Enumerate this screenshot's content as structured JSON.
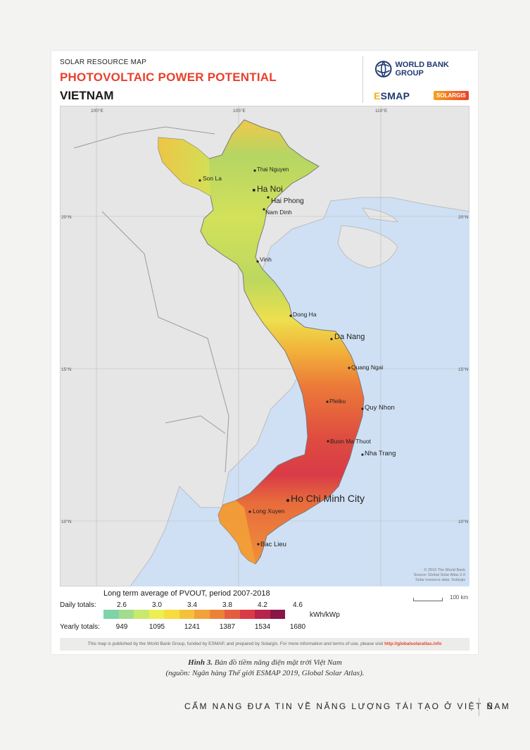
{
  "header": {
    "subtitle": "SOLAR RESOURCE MAP",
    "title": "PHOTOVOLTAIC POWER POTENTIAL",
    "country": "VIETNAM",
    "partners": {
      "world_bank": "WORLD BANK GROUP",
      "esmap_e": "E",
      "esmap_rest": "SMAP",
      "solargis": "SOLARGIS"
    }
  },
  "map": {
    "longitude_labels": [
      "100°E",
      "105°E",
      "110°E"
    ],
    "latitude_labels": [
      "20°N",
      "15°N",
      "10°N"
    ],
    "cities": [
      {
        "name": "Thai Nguyen",
        "size": "small"
      },
      {
        "name": "Son La",
        "size": "small"
      },
      {
        "name": "Ha Noi",
        "size": "large"
      },
      {
        "name": "Hai Phong",
        "size": "medium"
      },
      {
        "name": "Nam Dinh",
        "size": "small"
      },
      {
        "name": "Vinh",
        "size": "small"
      },
      {
        "name": "Dong Ha",
        "size": "small"
      },
      {
        "name": "Da Nang",
        "size": "medium"
      },
      {
        "name": "Quang Ngai",
        "size": "small"
      },
      {
        "name": "Pleiku",
        "size": "small"
      },
      {
        "name": "Quy Nhon",
        "size": "small"
      },
      {
        "name": "Buon Ma Thuot",
        "size": "small"
      },
      {
        "name": "Nha Trang",
        "size": "small"
      },
      {
        "name": "Ho Chi Minh City",
        "size": "large"
      },
      {
        "name": "Long Xuyen",
        "size": "small"
      },
      {
        "name": "Bac Lieu",
        "size": "small"
      }
    ],
    "copyright": [
      "© 2019 The World Bank",
      "Source: Global Solar Atlas 2.0",
      "Solar resource data: Solargis"
    ],
    "colors": {
      "sea": "#cfe0f4",
      "land": "#e6e6e6",
      "border": "#9a9a9a"
    }
  },
  "legend": {
    "title": "Long term average of PVOUT, period 2007-2018",
    "daily_label": "Daily totals:",
    "yearly_label": "Yearly totals:",
    "daily_values": [
      "2.6",
      "3.0",
      "3.4",
      "3.8",
      "4.2",
      "4.6"
    ],
    "yearly_values": [
      "949",
      "1095",
      "1241",
      "1387",
      "1534",
      "1680"
    ],
    "unit": "kWh/kWp",
    "colors": [
      "#7fd3a9",
      "#a3dc8c",
      "#c9e86e",
      "#ecef52",
      "#f7dc3e",
      "#f4c23a",
      "#f1a23a",
      "#ec8238",
      "#e45d3e",
      "#d93b47",
      "#b8254b",
      "#8a1548"
    ],
    "scale_label": "100 km"
  },
  "footer_note": {
    "text": "This map is published by the World Bank Group, funded by ESMAP, and prepared by Solargis. For more information and terms of use, please visit",
    "url": "http://globalsolaratlas.info"
  },
  "caption": {
    "label": "Hình 3.",
    "line1": " Bản đồ tiềm năng điện mặt trời Việt Nam",
    "line2": "(nguồn: Ngân hàng Thế giới ESMAP 2019, Global Solar Atlas)."
  },
  "page_footer": {
    "title": "CẨM NANG ĐƯA TIN VỀ NĂNG LƯỢNG TÁI TẠO Ở VIỆT NAM",
    "page_number": "9"
  }
}
